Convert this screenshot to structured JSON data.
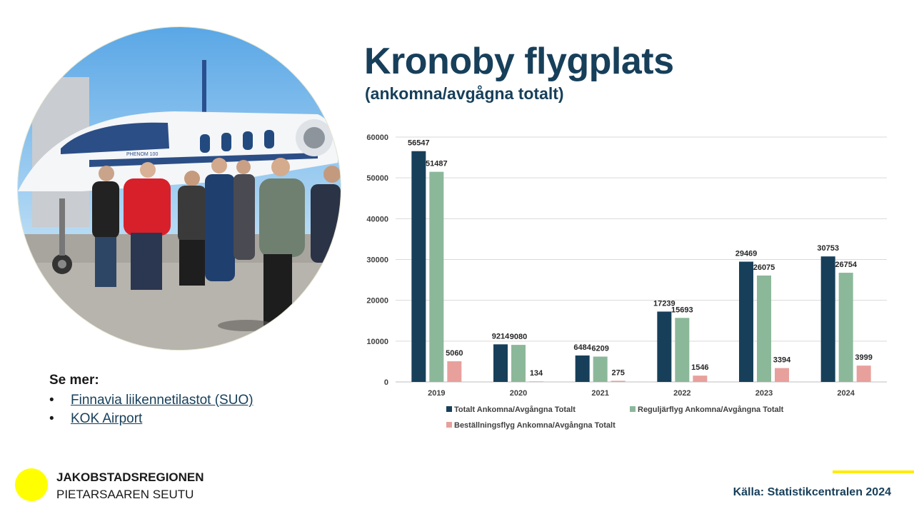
{
  "page": {
    "title": "Kronoby flygplats",
    "subtitle": "(ankomna/avgågna totalt)",
    "source": "Källa: Statistikcentralen 2024"
  },
  "see_more": {
    "heading": "Se mer:",
    "bullet": "•",
    "links": [
      {
        "label": "Finnavia liikennetilastot (SUO)"
      },
      {
        "label": "KOK Airport"
      }
    ]
  },
  "logo": {
    "line1": "JAKOBSTADSREGIONEN",
    "line2": "PIETARSAAREN SEUTU",
    "color": "#ffff00"
  },
  "photo": {
    "aircraft_label": "PHENOM 100"
  },
  "chart_data": {
    "type": "bar",
    "categories": [
      "2019",
      "2020",
      "2021",
      "2022",
      "2023",
      "2024"
    ],
    "series": [
      {
        "name": "Totalt Ankomna/Avgångna Totalt",
        "color": "#173f5a",
        "values": [
          56547,
          9214,
          6484,
          17239,
          29469,
          30753
        ]
      },
      {
        "name": "Reguljärflyg Ankomna/Avgångna Totalt",
        "color": "#8cb89a",
        "values": [
          51487,
          9080,
          6209,
          15693,
          26075,
          26754
        ]
      },
      {
        "name": "Beställningsflyg Ankomna/Avgångna Totalt",
        "color": "#e8a09c",
        "values": [
          5060,
          134,
          275,
          1546,
          3394,
          3999
        ]
      }
    ],
    "ylim": [
      0,
      60000
    ],
    "yticks": [
      0,
      10000,
      20000,
      30000,
      40000,
      50000,
      60000
    ],
    "grid": true,
    "legend_position": "bottom",
    "data_labels": true
  }
}
